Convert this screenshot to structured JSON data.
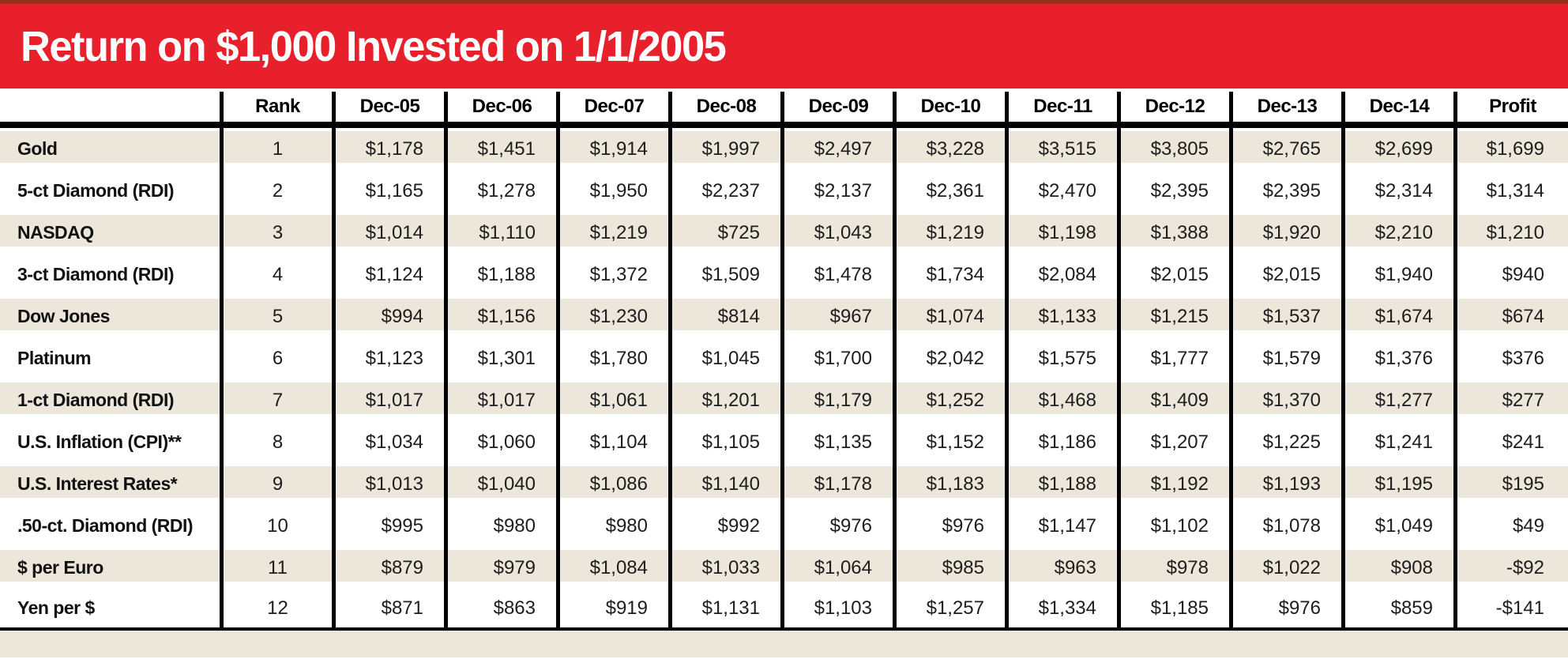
{
  "title": "Return on $1,000 Invested on 1/1/2005",
  "colors": {
    "banner_red": "#e8202b",
    "banner_top_edge": "#a02c20",
    "row_beige": "#ece7da",
    "grid_black": "#000000",
    "title_text": "#ffffff",
    "body_text": "#1d1d1d"
  },
  "chart_data": {
    "type": "table",
    "title": "Return on $1,000 Invested on 1/1/2005",
    "columns": [
      "",
      "Rank",
      "Dec-05",
      "Dec-06",
      "Dec-07",
      "Dec-08",
      "Dec-09",
      "Dec-10",
      "Dec-11",
      "Dec-12",
      "Dec-13",
      "Dec-14",
      "Profit"
    ],
    "rows": [
      {
        "label": "Gold",
        "rank": "1",
        "values": [
          "$1,178",
          "$1,451",
          "$1,914",
          "$1,997",
          "$2,497",
          "$3,228",
          "$3,515",
          "$3,805",
          "$2,765",
          "$2,699"
        ],
        "profit": "$1,699"
      },
      {
        "label": "5-ct Diamond (RDI)",
        "rank": "2",
        "values": [
          "$1,165",
          "$1,278",
          "$1,950",
          "$2,237",
          "$2,137",
          "$2,361",
          "$2,470",
          "$2,395",
          "$2,395",
          "$2,314"
        ],
        "profit": "$1,314"
      },
      {
        "label": "NASDAQ",
        "rank": "3",
        "values": [
          "$1,014",
          "$1,110",
          "$1,219",
          "$725",
          "$1,043",
          "$1,219",
          "$1,198",
          "$1,388",
          "$1,920",
          "$2,210"
        ],
        "profit": "$1,210"
      },
      {
        "label": "3-ct Diamond (RDI)",
        "rank": "4",
        "values": [
          "$1,124",
          "$1,188",
          "$1,372",
          "$1,509",
          "$1,478",
          "$1,734",
          "$2,084",
          "$2,015",
          "$2,015",
          "$1,940"
        ],
        "profit": "$940"
      },
      {
        "label": "Dow Jones",
        "rank": "5",
        "values": [
          "$994",
          "$1,156",
          "$1,230",
          "$814",
          "$967",
          "$1,074",
          "$1,133",
          "$1,215",
          "$1,537",
          "$1,674"
        ],
        "profit": "$674"
      },
      {
        "label": "Platinum",
        "rank": "6",
        "values": [
          "$1,123",
          "$1,301",
          "$1,780",
          "$1,045",
          "$1,700",
          "$2,042",
          "$1,575",
          "$1,777",
          "$1,579",
          "$1,376"
        ],
        "profit": "$376"
      },
      {
        "label": "1-ct Diamond (RDI)",
        "rank": "7",
        "values": [
          "$1,017",
          "$1,017",
          "$1,061",
          "$1,201",
          "$1,179",
          "$1,252",
          "$1,468",
          "$1,409",
          "$1,370",
          "$1,277"
        ],
        "profit": "$277"
      },
      {
        "label": "U.S. Inflation (CPI)**",
        "rank": "8",
        "values": [
          "$1,034",
          "$1,060",
          "$1,104",
          "$1,105",
          "$1,135",
          "$1,152",
          "$1,186",
          "$1,207",
          "$1,225",
          "$1,241"
        ],
        "profit": "$241"
      },
      {
        "label": "U.S. Interest Rates*",
        "rank": "9",
        "values": [
          "$1,013",
          "$1,040",
          "$1,086",
          "$1,140",
          "$1,178",
          "$1,183",
          "$1,188",
          "$1,192",
          "$1,193",
          "$1,195"
        ],
        "profit": "$195"
      },
      {
        "label": ".50-ct. Diamond (RDI)",
        "rank": "10",
        "values": [
          "$995",
          "$980",
          "$980",
          "$992",
          "$976",
          "$976",
          "$1,147",
          "$1,102",
          "$1,078",
          "$1,049"
        ],
        "profit": "$49"
      },
      {
        "label": "$ per Euro",
        "rank": "11",
        "values": [
          "$879",
          "$979",
          "$1,084",
          "$1,033",
          "$1,064",
          "$985",
          "$963",
          "$978",
          "$1,022",
          "$908"
        ],
        "profit": "-$92"
      },
      {
        "label": "Yen per $",
        "rank": "12",
        "values": [
          "$871",
          "$863",
          "$919",
          "$1,131",
          "$1,103",
          "$1,257",
          "$1,334",
          "$1,185",
          "$976",
          "$859"
        ],
        "profit": "-$141"
      }
    ]
  }
}
